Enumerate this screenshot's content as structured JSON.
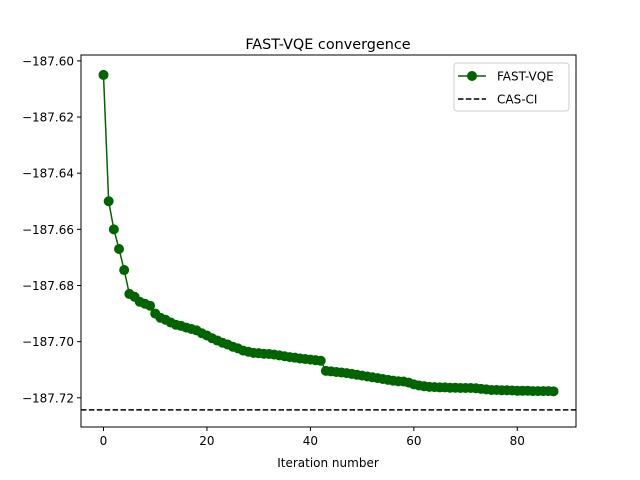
{
  "chart_data": {
    "type": "line",
    "title": "FAST-VQE convergence",
    "xlabel": "Iteration number",
    "ylabel": "",
    "xlim": [
      -4.35,
      91.35
    ],
    "ylim": [
      -187.7304,
      -187.5979
    ],
    "xticks": [
      0,
      20,
      40,
      60,
      80
    ],
    "xtick_labels": [
      "0",
      "20",
      "40",
      "60",
      "80"
    ],
    "yticks": [
      -187.6,
      -187.62,
      -187.64,
      -187.66,
      -187.68,
      -187.7,
      -187.72
    ],
    "ytick_labels": [
      "−187.60",
      "−187.62",
      "−187.64",
      "−187.66",
      "−187.68",
      "−187.70",
      "−187.72"
    ],
    "grid": false,
    "legend_position": "top-right",
    "series": [
      {
        "name": "FAST-VQE",
        "color": "#006400",
        "marker": "circle",
        "style": "solid",
        "x": [
          0,
          1,
          2,
          3,
          4,
          5,
          6,
          7,
          8,
          9,
          10,
          11,
          12,
          13,
          14,
          15,
          16,
          17,
          18,
          19,
          20,
          21,
          22,
          23,
          24,
          25,
          26,
          27,
          28,
          29,
          30,
          31,
          32,
          33,
          34,
          35,
          36,
          37,
          38,
          39,
          40,
          41,
          42,
          43,
          44,
          45,
          46,
          47,
          48,
          49,
          50,
          51,
          52,
          53,
          54,
          55,
          56,
          57,
          58,
          59,
          60,
          61,
          62,
          63,
          64,
          65,
          66,
          67,
          68,
          69,
          70,
          71,
          72,
          73,
          74,
          75,
          76,
          77,
          78,
          79,
          80,
          81,
          82,
          83,
          84,
          85,
          86,
          87
        ],
        "y": [
          -187.605,
          -187.65,
          -187.66,
          -187.667,
          -187.6745,
          -187.683,
          -187.684,
          -187.6858,
          -187.6865,
          -187.6872,
          -187.69,
          -187.6915,
          -187.6922,
          -187.6932,
          -187.694,
          -187.6944,
          -187.695,
          -187.6955,
          -187.696,
          -187.697,
          -187.6978,
          -187.6988,
          -187.6996,
          -187.7004,
          -187.701,
          -187.7018,
          -187.7024,
          -187.7032,
          -187.7036,
          -187.704,
          -187.7041,
          -187.7043,
          -187.7044,
          -187.7046,
          -187.7049,
          -187.7052,
          -187.7055,
          -187.7057,
          -187.706,
          -187.7062,
          -187.7064,
          -187.7066,
          -187.7068,
          -187.7104,
          -187.7106,
          -187.7108,
          -187.711,
          -187.7112,
          -187.7115,
          -187.7118,
          -187.7121,
          -187.7124,
          -187.7127,
          -187.713,
          -187.7133,
          -187.7136,
          -187.7139,
          -187.7141,
          -187.7142,
          -187.7146,
          -187.7152,
          -187.7156,
          -187.7159,
          -187.7161,
          -187.7162,
          -187.7163,
          -187.7163,
          -187.7164,
          -187.7164,
          -187.7165,
          -187.7165,
          -187.7165,
          -187.7166,
          -187.7168,
          -187.717,
          -187.7172,
          -187.7172,
          -187.7173,
          -187.7173,
          -187.7174,
          -187.7175,
          -187.7175,
          -187.7175,
          -187.7176,
          -187.7176,
          -187.7176,
          -187.7176,
          -187.7177
        ]
      },
      {
        "name": "CAS-CI",
        "color": "#000000",
        "style": "dashed",
        "hline": -187.7243
      }
    ]
  }
}
